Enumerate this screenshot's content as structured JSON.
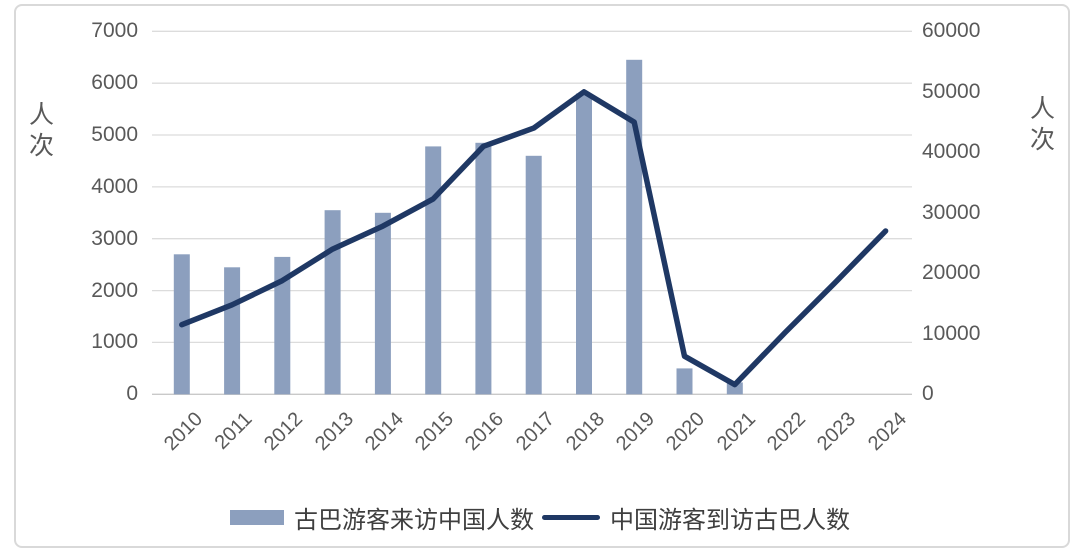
{
  "chart_data": {
    "type": "bar+line combo",
    "categories": [
      "2010",
      "2011",
      "2012",
      "2013",
      "2014",
      "2015",
      "2016",
      "2017",
      "2018",
      "2019",
      "2020",
      "2021",
      "2022",
      "2023",
      "2024"
    ],
    "series": [
      {
        "name": "古巴游客来访中国人数",
        "type": "bar",
        "axis": "left",
        "color": "#8c9fbe",
        "values": [
          2700,
          2450,
          2650,
          3550,
          3500,
          4780,
          4850,
          4600,
          5800,
          6450,
          500,
          230,
          null,
          null,
          null
        ]
      },
      {
        "name": "中国游客到访古巴人数",
        "type": "line",
        "axis": "right",
        "color": "#1f3864",
        "values": [
          11500,
          14800,
          18800,
          24000,
          27800,
          32300,
          41000,
          44000,
          50000,
          45000,
          6300,
          1600,
          10200,
          18500,
          27000
        ]
      }
    ],
    "left_axis": {
      "title": "人次",
      "min": 0,
      "max": 7000,
      "step": 1000,
      "ticks": [
        "7000",
        "6000",
        "5000",
        "4000",
        "3000",
        "2000",
        "1000",
        "0"
      ]
    },
    "right_axis": {
      "title": "人次",
      "min": 0,
      "max": 60000,
      "step": 10000,
      "ticks": [
        "60000",
        "50000",
        "40000",
        "30000",
        "20000",
        "10000",
        "0"
      ]
    },
    "grid": "horizontal-only",
    "legend_position": "bottom"
  },
  "colors": {
    "bar": "#8c9fbe",
    "line": "#1f3864",
    "gridline": "#dcdcdc",
    "baseline": "#c9c9c9",
    "tick_text": "#595959",
    "legend_text": "#3f3f3f",
    "frame_border": "#d9d9d9"
  }
}
